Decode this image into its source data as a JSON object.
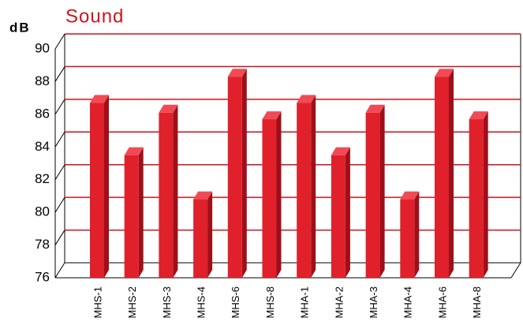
{
  "chart_data": {
    "type": "bar3d",
    "title": "Sound",
    "y_label": "dB",
    "categories": [
      "MHS-1",
      "MHS-2",
      "MHS-3",
      "MHS-4",
      "MHS-6",
      "MHS-8",
      "MHA-1",
      "MHA-2",
      "MHA-3",
      "MHA-4",
      "MHA-6",
      "MHA-8"
    ],
    "values": [
      86.7,
      83.5,
      86.1,
      80.8,
      88.3,
      85.7,
      86.7,
      83.5,
      86.1,
      80.8,
      88.3,
      85.7
    ],
    "color": "#e0202a",
    "ylim": [
      76,
      90
    ],
    "yticks": [
      76,
      78,
      80,
      82,
      84,
      86,
      88,
      90
    ],
    "grid": true
  }
}
